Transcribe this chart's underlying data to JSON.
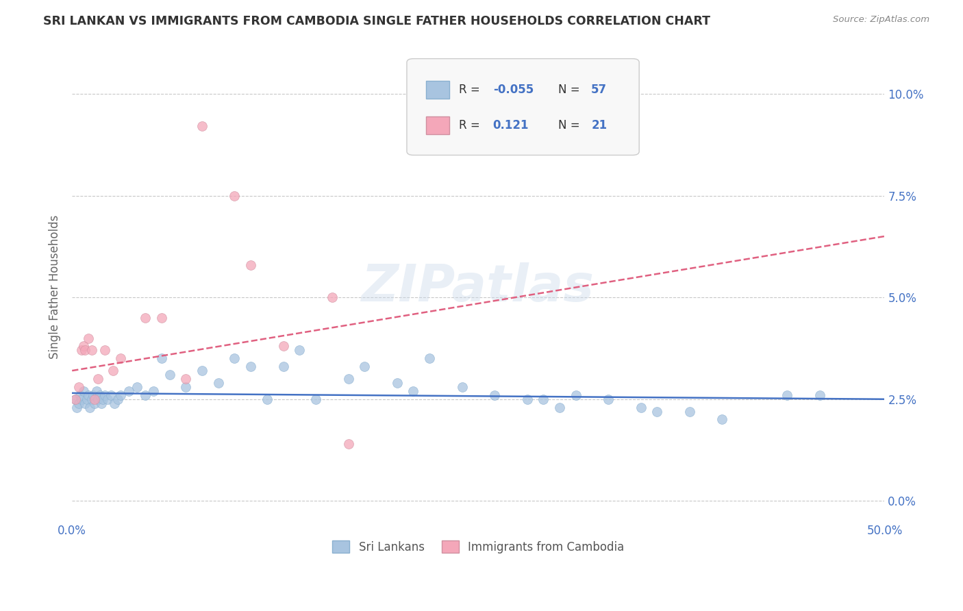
{
  "title": "SRI LANKAN VS IMMIGRANTS FROM CAMBODIA SINGLE FATHER HOUSEHOLDS CORRELATION CHART",
  "source": "Source: ZipAtlas.com",
  "ylabel": "Single Father Households",
  "xlim": [
    0.0,
    50.0
  ],
  "ylim": [
    -0.5,
    11.0
  ],
  "yticks": [
    0.0,
    2.5,
    5.0,
    7.5,
    10.0
  ],
  "legend_sri_r": "-0.055",
  "legend_sri_n": "57",
  "legend_cam_r": "0.121",
  "legend_cam_n": "21",
  "sri_color": "#a8c4e0",
  "cam_color": "#f4a7b9",
  "sri_line_color": "#4472c4",
  "cam_line_color": "#e06080",
  "background_color": "#ffffff",
  "grid_color": "#c8c8c8",
  "title_color": "#333333",
  "watermark": "ZIPatlas",
  "sri_x": [
    0.2,
    0.3,
    0.4,
    0.5,
    0.6,
    0.7,
    0.8,
    0.9,
    1.0,
    1.1,
    1.2,
    1.3,
    1.4,
    1.5,
    1.6,
    1.7,
    1.8,
    1.9,
    2.0,
    2.2,
    2.4,
    2.6,
    2.8,
    3.0,
    3.5,
    4.0,
    4.5,
    5.0,
    5.5,
    6.0,
    7.0,
    8.0,
    9.0,
    10.0,
    11.0,
    12.0,
    13.0,
    14.0,
    15.0,
    17.0,
    18.0,
    20.0,
    21.0,
    22.0,
    24.0,
    26.0,
    28.0,
    29.0,
    30.0,
    31.0,
    33.0,
    35.0,
    36.0,
    38.0,
    40.0,
    44.0,
    46.0
  ],
  "sri_y": [
    2.5,
    2.3,
    2.4,
    2.6,
    2.5,
    2.7,
    2.4,
    2.5,
    2.6,
    2.3,
    2.5,
    2.6,
    2.4,
    2.7,
    2.5,
    2.6,
    2.4,
    2.5,
    2.6,
    2.5,
    2.6,
    2.4,
    2.5,
    2.6,
    2.7,
    2.8,
    2.6,
    2.7,
    3.5,
    3.1,
    2.8,
    3.2,
    2.9,
    3.5,
    3.3,
    2.5,
    3.3,
    3.7,
    2.5,
    3.0,
    3.3,
    2.9,
    2.7,
    3.5,
    2.8,
    2.6,
    2.5,
    2.5,
    2.3,
    2.6,
    2.5,
    2.3,
    2.2,
    2.2,
    2.0,
    2.6,
    2.6
  ],
  "cam_x": [
    0.2,
    0.4,
    0.6,
    0.7,
    0.8,
    1.0,
    1.2,
    1.4,
    1.6,
    2.0,
    2.5,
    3.0,
    4.5,
    5.5,
    7.0,
    8.0,
    10.0,
    11.0,
    13.0,
    16.0,
    17.0
  ],
  "cam_y": [
    2.5,
    2.8,
    3.7,
    3.8,
    3.7,
    4.0,
    3.7,
    2.5,
    3.0,
    3.7,
    3.2,
    3.5,
    4.5,
    4.5,
    3.0,
    9.2,
    7.5,
    5.8,
    3.8,
    5.0,
    1.4
  ]
}
